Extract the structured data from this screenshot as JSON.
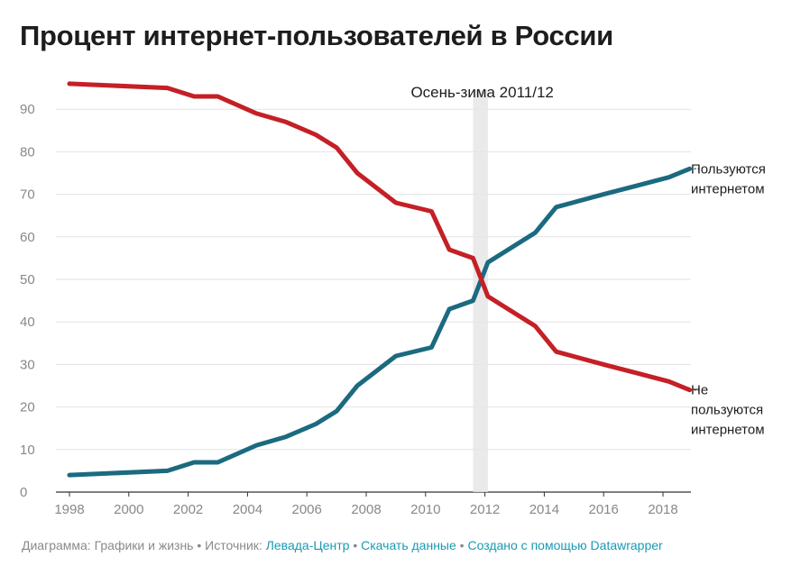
{
  "title": "Процент интернет-пользователей в России",
  "chart_data": {
    "type": "line",
    "xlim": [
      1998,
      2019
    ],
    "ylim": [
      0,
      97
    ],
    "x_ticks": [
      1998,
      2000,
      2002,
      2004,
      2006,
      2008,
      2010,
      2012,
      2014,
      2016,
      2018
    ],
    "y_ticks": [
      0,
      10,
      20,
      30,
      40,
      50,
      60,
      70,
      80,
      90
    ],
    "grid": true,
    "highlight_band": {
      "x_start": 2011.6,
      "x_end": 2012.1,
      "label": "Осень-зима 2011/12"
    },
    "series": [
      {
        "name": "Пользуются интернетом",
        "color": "#1b6a80",
        "x": [
          1998,
          2001.3,
          2002.2,
          2003,
          2004.3,
          2005.3,
          2006.3,
          2007,
          2007.7,
          2009,
          2010.2,
          2010.8,
          2011.6,
          2012.1,
          2013.7,
          2014.4,
          2016,
          2017.1,
          2018.2,
          2018.9
        ],
        "y": [
          4,
          5,
          7,
          7,
          11,
          13,
          16,
          19,
          25,
          32,
          34,
          43,
          45,
          54,
          61,
          67,
          70,
          72,
          74,
          76
        ]
      },
      {
        "name": "Не пользуются интернетом",
        "color": "#c42026",
        "x": [
          1998,
          2001.3,
          2002.2,
          2003,
          2004.3,
          2005.3,
          2006.3,
          2007,
          2007.7,
          2009,
          2010.2,
          2010.8,
          2011.6,
          2012.1,
          2013.7,
          2014.4,
          2016,
          2017.1,
          2018.2,
          2018.9
        ],
        "y": [
          96,
          95,
          93,
          93,
          89,
          87,
          84,
          81,
          75,
          68,
          66,
          57,
          55,
          46,
          39,
          33,
          30,
          28,
          26,
          24
        ]
      }
    ],
    "series_labels": [
      {
        "lines": [
          "Пользуются",
          "интернетом"
        ]
      },
      {
        "lines": [
          "Не",
          "пользуются",
          "интернетом"
        ]
      }
    ]
  },
  "footer": {
    "prefix": "Диаграмма: Графики и жизнь • Источник: ",
    "source_link": "Левада-Центр",
    "sep1": " • ",
    "download_link": "Скачать данные",
    "sep2": " • ",
    "created_link": "Создано с помощью Datawrapper",
    "link_color": "#1a9ab3"
  }
}
